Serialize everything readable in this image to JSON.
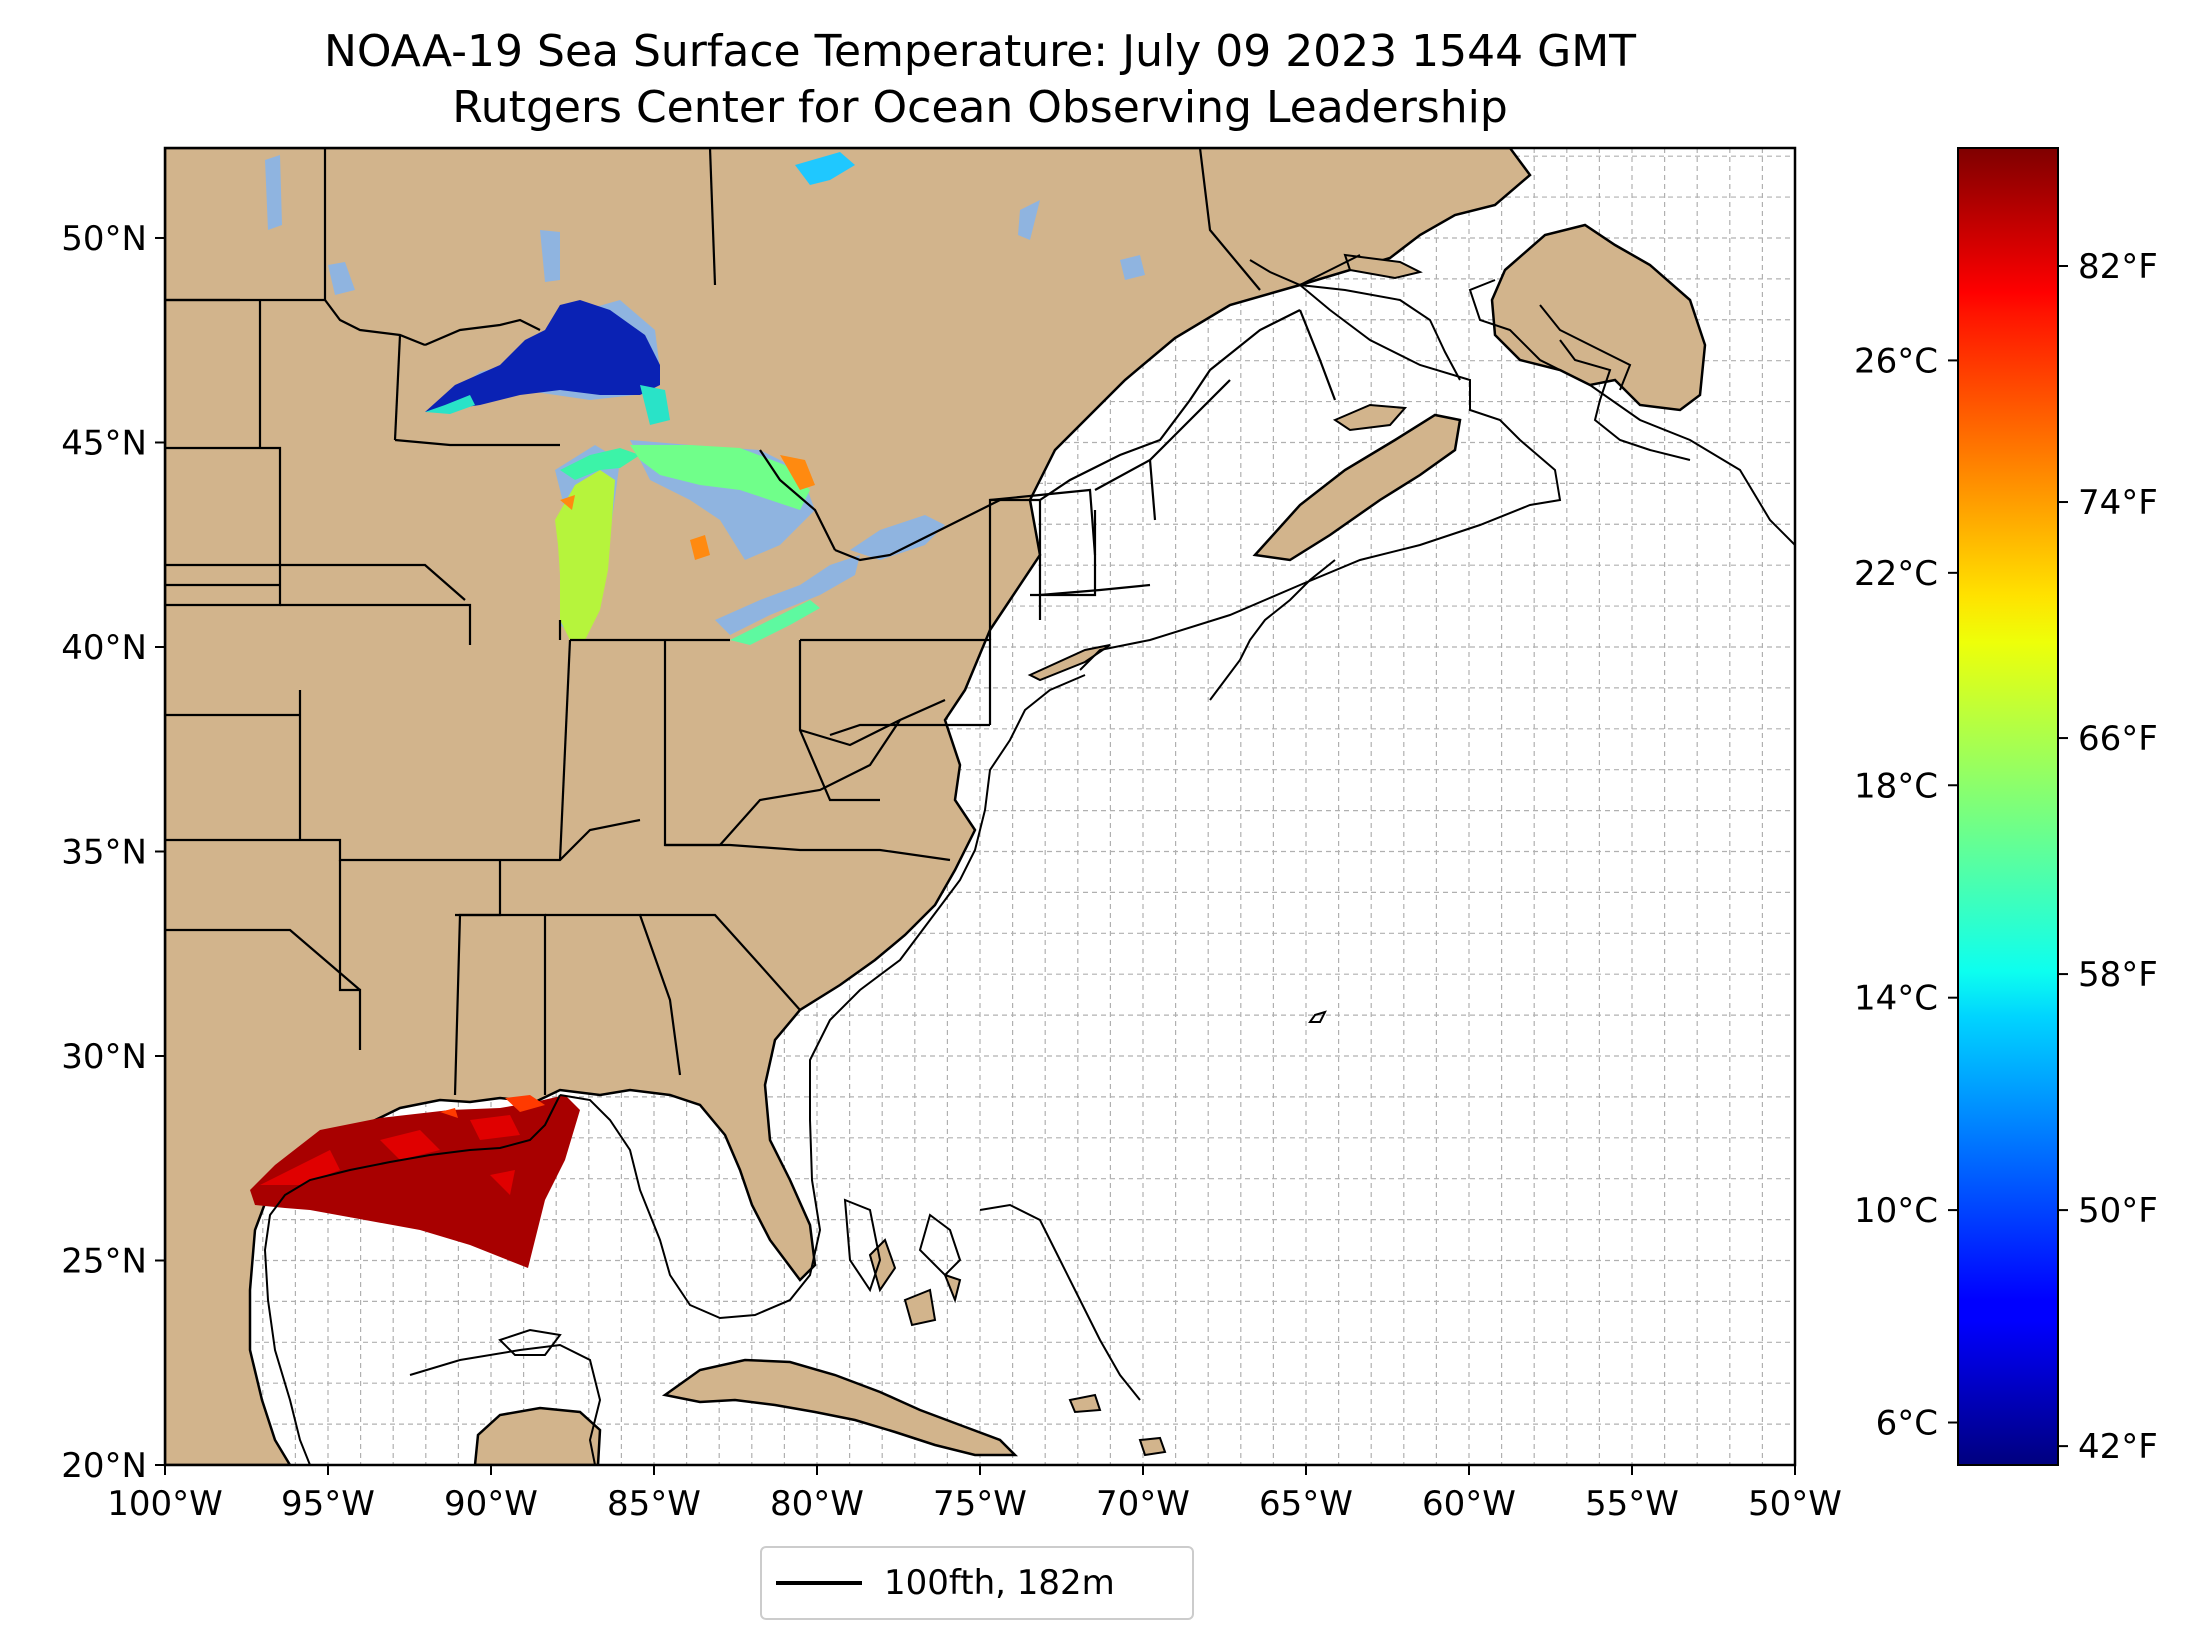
{
  "title": {
    "line1": "NOAA-19 Sea Surface Temperature: July 09 2023 1544 GMT",
    "line2": "Rutgers Center for Ocean Observing Leadership"
  },
  "map": {
    "lon_range": [
      -100,
      -50
    ],
    "lat_range": [
      20,
      52.2
    ],
    "x_ticks": [
      {
        "lon": -100,
        "label": "100°W"
      },
      {
        "lon": -95,
        "label": "95°W"
      },
      {
        "lon": -90,
        "label": "90°W"
      },
      {
        "lon": -85,
        "label": "85°W"
      },
      {
        "lon": -80,
        "label": "80°W"
      },
      {
        "lon": -75,
        "label": "75°W"
      },
      {
        "lon": -70,
        "label": "70°W"
      },
      {
        "lon": -65,
        "label": "65°W"
      },
      {
        "lon": -60,
        "label": "60°W"
      },
      {
        "lon": -55,
        "label": "55°W"
      },
      {
        "lon": -50,
        "label": "50°W"
      }
    ],
    "y_ticks": [
      {
        "lat": 20,
        "label": "20°N"
      },
      {
        "lat": 25,
        "label": "25°N"
      },
      {
        "lat": 30,
        "label": "30°N"
      },
      {
        "lat": 35,
        "label": "35°N"
      },
      {
        "lat": 40,
        "label": "40°N"
      },
      {
        "lat": 45,
        "label": "45°N"
      },
      {
        "lat": 50,
        "label": "50°N"
      }
    ],
    "gridlines": true,
    "colors": {
      "land": "#d2b48c",
      "lake": "#8fb4e0",
      "ocean": "#ffffff",
      "grid": "#b0b0b0",
      "coast": "#000000"
    }
  },
  "colorbar": {
    "colormap": "jet",
    "range_celsius": [
      5.2,
      30.0
    ],
    "celsius_ticks": [
      {
        "value": 6,
        "label": "6°C"
      },
      {
        "value": 10,
        "label": "10°C"
      },
      {
        "value": 14,
        "label": "14°C"
      },
      {
        "value": 18,
        "label": "18°C"
      },
      {
        "value": 22,
        "label": "22°C"
      },
      {
        "value": 26,
        "label": "26°C"
      }
    ],
    "fahrenheit_ticks": [
      {
        "value": 42,
        "label": "42°F"
      },
      {
        "value": 50,
        "label": "50°F"
      },
      {
        "value": 58,
        "label": "58°F"
      },
      {
        "value": 66,
        "label": "66°F"
      },
      {
        "value": 74,
        "label": "74°F"
      },
      {
        "value": 82,
        "label": "82°F"
      }
    ]
  },
  "legend": {
    "label": "100fth, 182m",
    "color": "#000000"
  }
}
